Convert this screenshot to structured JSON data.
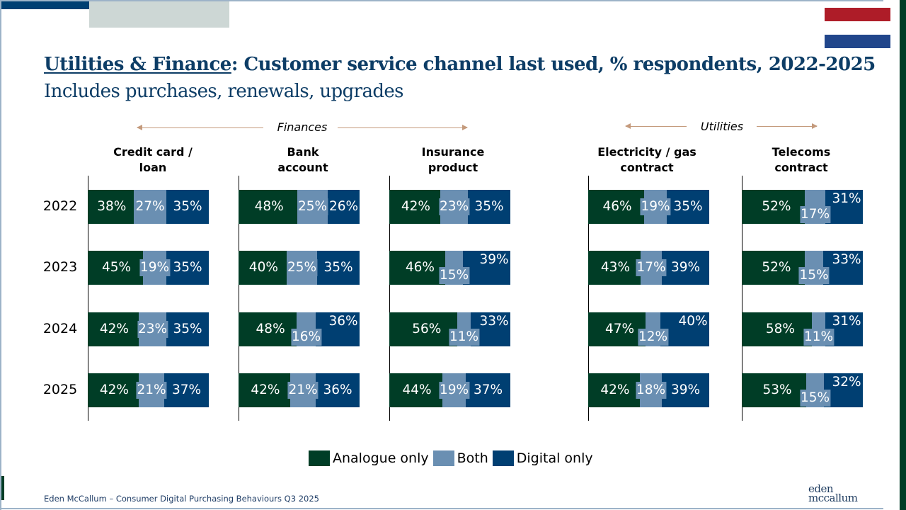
{
  "header": {
    "title_underlined": "Utilities & Finance",
    "title_rest": ": Customer service channel last used, % respondents, 2022-2025",
    "subtitle": "Includes purchases, renewals, upgrades"
  },
  "groups": [
    {
      "label": "Finances"
    },
    {
      "label": "Utilities"
    }
  ],
  "colors": {
    "analogue": "#003d26",
    "both": "#6a8fb2",
    "digital": "#003f72",
    "flag_red": "#ae1c28",
    "flag_blue": "#21468b"
  },
  "legend": [
    {
      "label": "Analogue only",
      "color": "#003d26"
    },
    {
      "label": "Both",
      "color": "#6a8fb2"
    },
    {
      "label": "Digital only",
      "color": "#003f72"
    }
  ],
  "footer": {
    "text": "Eden McCallum – Consumer Digital Purchasing Behaviours Q3 2025",
    "logo_line1": "eden",
    "logo_line2": "mccallum"
  },
  "chart_data": {
    "type": "bar",
    "stacked": true,
    "orientation": "horizontal",
    "title": "Utilities & Finance: Customer service channel last used, % respondents, 2022-2025",
    "subtitle": "Includes purchases, renewals, upgrades",
    "years": [
      "2022",
      "2023",
      "2024",
      "2025"
    ],
    "series_names": [
      "Analogue only",
      "Both",
      "Digital only"
    ],
    "unit": "%",
    "legend_position": "bottom",
    "panels": [
      {
        "group": "Finances",
        "title_line1": "Credit card /",
        "title_line2": "loan",
        "values": [
          [
            38,
            27,
            35
          ],
          [
            45,
            19,
            35
          ],
          [
            42,
            23,
            35
          ],
          [
            42,
            21,
            37
          ]
        ]
      },
      {
        "group": "Finances",
        "title_line1": "Bank",
        "title_line2": "account",
        "values": [
          [
            48,
            25,
            26
          ],
          [
            40,
            25,
            35
          ],
          [
            48,
            16,
            36
          ],
          [
            42,
            21,
            36
          ]
        ]
      },
      {
        "group": "Finances",
        "title_line1": "Insurance",
        "title_line2": "product",
        "values": [
          [
            42,
            23,
            35
          ],
          [
            46,
            15,
            39
          ],
          [
            56,
            11,
            33
          ],
          [
            44,
            19,
            37
          ]
        ]
      },
      {
        "group": "Utilities",
        "title_line1": "Electricity / gas",
        "title_line2": "contract",
        "values": [
          [
            46,
            19,
            35
          ],
          [
            43,
            17,
            39
          ],
          [
            47,
            12,
            40
          ],
          [
            42,
            18,
            39
          ]
        ]
      },
      {
        "group": "Utilities",
        "title_line1": "Telecoms",
        "title_line2": "contract",
        "values": [
          [
            52,
            17,
            31
          ],
          [
            52,
            15,
            33
          ],
          [
            58,
            11,
            31
          ],
          [
            53,
            15,
            32
          ]
        ]
      }
    ]
  }
}
